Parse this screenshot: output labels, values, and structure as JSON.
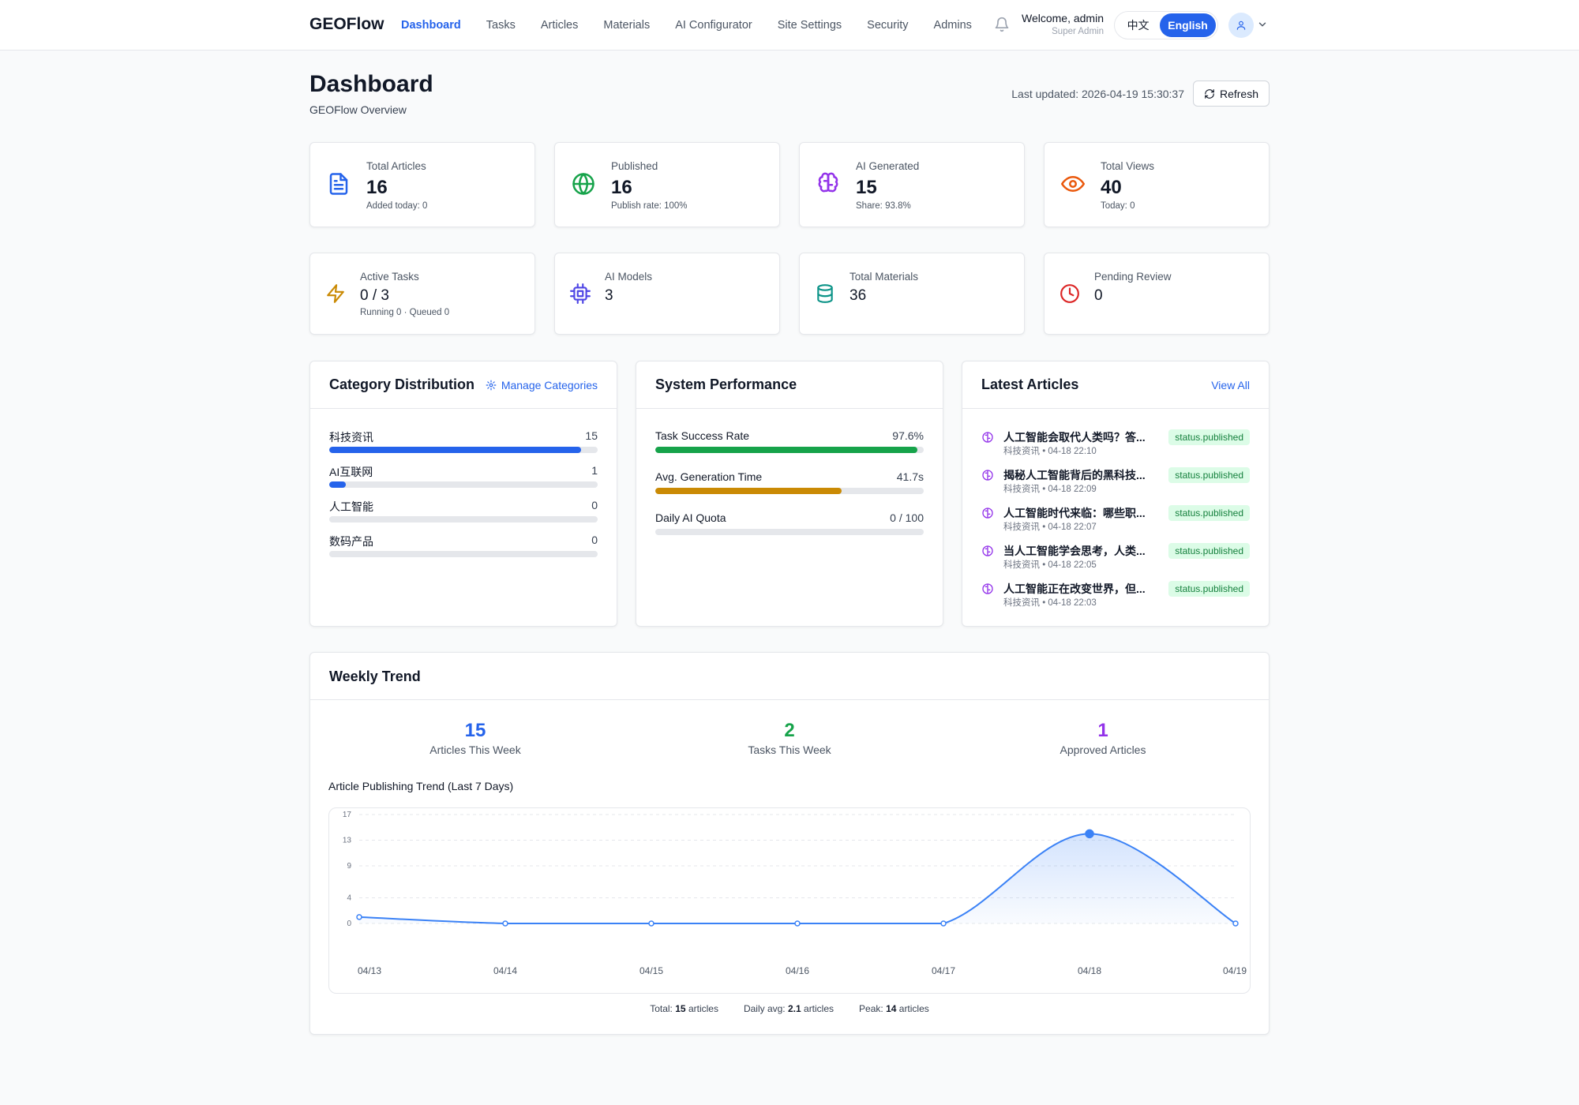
{
  "header": {
    "brand": "GEOFlow",
    "nav": [
      "Dashboard",
      "Tasks",
      "Articles",
      "Materials",
      "AI Configurator",
      "Site Settings",
      "Security",
      "Admins"
    ],
    "active_nav": "Dashboard",
    "welcome": "Welcome, admin",
    "role": "Super Admin",
    "lang_zh": "中文",
    "lang_en": "English",
    "active_lang": "English"
  },
  "page": {
    "title": "Dashboard",
    "subtitle": "GEOFlow Overview",
    "last_updated": "Last updated: 2026-04-19 15:30:37",
    "refresh_label": "Refresh"
  },
  "stats_row1": [
    {
      "label": "Total Articles",
      "value": "16",
      "sub": "Added today: 0",
      "icon": "document-icon",
      "color": "#2563eb"
    },
    {
      "label": "Published",
      "value": "16",
      "sub": "Publish rate: 100%",
      "icon": "globe-icon",
      "color": "#16a34a"
    },
    {
      "label": "AI Generated",
      "value": "15",
      "sub": "Share: 93.8%",
      "icon": "brain-icon",
      "color": "#9333ea"
    },
    {
      "label": "Total Views",
      "value": "40",
      "sub": "Today: 0",
      "icon": "eye-icon",
      "color": "#ea580c"
    }
  ],
  "stats_row2": [
    {
      "label": "Active Tasks",
      "value": "0 / 3",
      "sub": "Running 0 · Queued 0",
      "icon": "lightning-icon",
      "color": "#ca8a04"
    },
    {
      "label": "AI Models",
      "value": "3",
      "sub": "",
      "icon": "cpu-icon",
      "color": "#4f46e5"
    },
    {
      "label": "Total Materials",
      "value": "36",
      "sub": "",
      "icon": "database-icon",
      "color": "#0d9488"
    },
    {
      "label": "Pending Review",
      "value": "0",
      "sub": "",
      "icon": "clock-icon",
      "color": "#dc2626"
    }
  ],
  "category_panel": {
    "title": "Category Distribution",
    "link": "Manage Categories",
    "items": [
      {
        "name": "科技资讯",
        "count": "15",
        "fraction": 0.9375
      },
      {
        "name": "AI互联网",
        "count": "1",
        "fraction": 0.0625
      },
      {
        "name": "人工智能",
        "count": "0",
        "fraction": 0
      },
      {
        "name": "数码产品",
        "count": "0",
        "fraction": 0
      }
    ],
    "bar_color": "#2563eb"
  },
  "performance_panel": {
    "title": "System Performance",
    "items": [
      {
        "name": "Task Success Rate",
        "value": "97.6%",
        "fraction": 0.976,
        "color": "#16a34a"
      },
      {
        "name": "Avg. Generation Time",
        "value": "41.7s",
        "fraction": 0.695,
        "color": "#ca8a04"
      },
      {
        "name": "Daily AI Quota",
        "value": "0 / 100",
        "fraction": 0,
        "color": "#2563eb"
      }
    ]
  },
  "latest_panel": {
    "title": "Latest Articles",
    "link": "View All",
    "articles": [
      {
        "title": "人工智能会取代人类吗？答...",
        "meta": "科技资讯 • 04-18 22:10",
        "status": "status.published"
      },
      {
        "title": "揭秘人工智能背后的黑科技...",
        "meta": "科技资讯 • 04-18 22:09",
        "status": "status.published"
      },
      {
        "title": "人工智能时代来临：哪些职...",
        "meta": "科技资讯 • 04-18 22:07",
        "status": "status.published"
      },
      {
        "title": "当人工智能学会思考，人类...",
        "meta": "科技资讯 • 04-18 22:05",
        "status": "status.published"
      },
      {
        "title": "人工智能正在改变世界，但...",
        "meta": "科技资讯 • 04-18 22:03",
        "status": "status.published"
      }
    ]
  },
  "weekly": {
    "title": "Weekly Trend",
    "stats": [
      {
        "value": "15",
        "label": "Articles This Week",
        "color": "#2563eb"
      },
      {
        "value": "2",
        "label": "Tasks This Week",
        "color": "#16a34a"
      },
      {
        "value": "1",
        "label": "Approved Articles",
        "color": "#9333ea"
      }
    ],
    "chart_title": "Article Publishing Trend (Last 7 Days)",
    "summary": {
      "total_label": "Total:",
      "total_value": "15",
      "total_unit": "articles",
      "avg_label": "Daily avg:",
      "avg_value": "2.1",
      "avg_unit": "articles",
      "peak_label": "Peak:",
      "peak_value": "14",
      "peak_unit": "articles"
    }
  },
  "chart_data": {
    "type": "area",
    "x": [
      "04/13",
      "04/14",
      "04/15",
      "04/16",
      "04/17",
      "04/18",
      "04/19"
    ],
    "values": [
      1,
      0,
      0,
      0,
      0,
      14,
      0
    ],
    "y_ticks": [
      "0",
      "4",
      "9",
      "13",
      "17"
    ],
    "ylim": [
      0,
      17
    ],
    "grid": true,
    "line_color": "#3b82f6"
  }
}
